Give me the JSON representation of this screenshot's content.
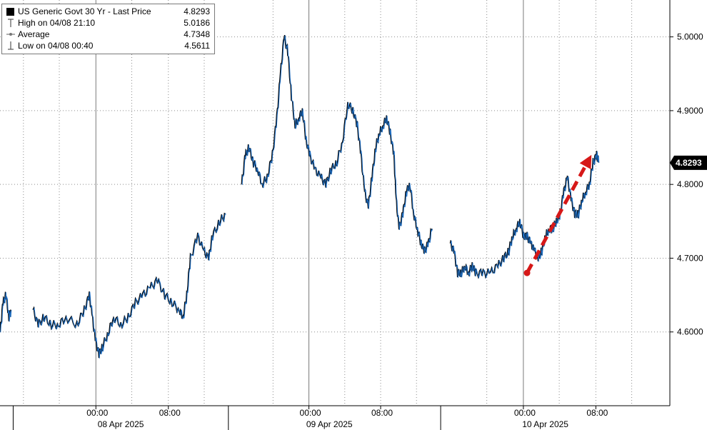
{
  "legend": {
    "series_name": "US Generic Govt 30 Yr - Last Price",
    "last_value": "4.8293",
    "high_label": "High on 04/08 21:10",
    "high_value": "5.0186",
    "average_label": "Average",
    "average_value": "4.7348",
    "low_label": "Low on 04/08 00:40",
    "low_value": "4.5611"
  },
  "colors": {
    "line_up": "#1f6fc4",
    "line_dark": "#000000",
    "arrow": "#d61818",
    "last_box": "#000000"
  },
  "chart_data": {
    "type": "line",
    "series": [
      {
        "name": "US Generic Govt 30 Yr - Last Price",
        "segments": [
          [
            [
              0,
              4.6
            ],
            [
              0.4,
              4.64
            ],
            [
              0.8,
              4.65
            ],
            [
              1.2,
              4.62
            ],
            [
              1.5,
              4.63
            ]
          ],
          [
            [
              4.5,
              4.63
            ],
            [
              5.2,
              4.61
            ],
            [
              6.0,
              4.62
            ],
            [
              7.0,
              4.61
            ],
            [
              8.0,
              4.61
            ],
            [
              9.0,
              4.62
            ],
            [
              10.5,
              4.61
            ],
            [
              11.5,
              4.63
            ],
            [
              12.2,
              4.65
            ],
            [
              12.6,
              4.62
            ],
            [
              13.0,
              4.59
            ],
            [
              13.5,
              4.57
            ],
            [
              14.0,
              4.58
            ],
            [
              14.8,
              4.6
            ],
            [
              15.5,
              4.62
            ],
            [
              16.5,
              4.61
            ],
            [
              17.5,
              4.62
            ],
            [
              18.5,
              4.64
            ],
            [
              19.5,
              4.65
            ],
            [
              20.5,
              4.66
            ],
            [
              21.5,
              4.67
            ],
            [
              22.5,
              4.65
            ],
            [
              23.5,
              4.64
            ],
            [
              24.5,
              4.63
            ],
            [
              25.0,
              4.62
            ],
            [
              25.5,
              4.65
            ],
            [
              26.0,
              4.7
            ],
            [
              27.0,
              4.73
            ],
            [
              27.8,
              4.71
            ],
            [
              28.5,
              4.7
            ],
            [
              29.0,
              4.73
            ],
            [
              30.0,
              4.75
            ],
            [
              30.8,
              4.76
            ]
          ],
          [
            [
              33.0,
              4.8
            ],
            [
              33.5,
              4.84
            ],
            [
              34.0,
              4.85
            ],
            [
              34.6,
              4.83
            ],
            [
              35.2,
              4.82
            ],
            [
              35.8,
              4.8
            ],
            [
              36.5,
              4.81
            ],
            [
              37.2,
              4.84
            ],
            [
              37.8,
              4.89
            ],
            [
              38.3,
              4.95
            ],
            [
              38.8,
              5.0
            ],
            [
              39.3,
              4.98
            ],
            [
              39.8,
              4.92
            ],
            [
              40.3,
              4.88
            ],
            [
              40.8,
              4.89
            ],
            [
              41.3,
              4.9
            ],
            [
              41.8,
              4.86
            ],
            [
              42.3,
              4.84
            ],
            [
              43.0,
              4.82
            ],
            [
              43.8,
              4.81
            ],
            [
              44.5,
              4.8
            ],
            [
              45.2,
              4.82
            ],
            [
              46.0,
              4.83
            ],
            [
              46.8,
              4.86
            ],
            [
              47.5,
              4.91
            ],
            [
              48.2,
              4.9
            ],
            [
              48.8,
              4.88
            ],
            [
              49.3,
              4.84
            ],
            [
              49.8,
              4.79
            ],
            [
              50.3,
              4.77
            ],
            [
              50.8,
              4.81
            ],
            [
              51.3,
              4.85
            ],
            [
              51.8,
              4.87
            ],
            [
              52.3,
              4.88
            ],
            [
              52.8,
              4.89
            ],
            [
              53.3,
              4.87
            ],
            [
              53.8,
              4.84
            ],
            [
              54.1,
              4.78
            ],
            [
              54.5,
              4.74
            ],
            [
              55.0,
              4.76
            ],
            [
              55.5,
              4.79
            ],
            [
              56.0,
              4.8
            ],
            [
              56.5,
              4.76
            ],
            [
              57.0,
              4.74
            ],
            [
              57.5,
              4.72
            ],
            [
              58.0,
              4.71
            ],
            [
              58.5,
              4.72
            ],
            [
              59.0,
              4.74
            ]
          ],
          [
            [
              61.5,
              4.72
            ],
            [
              62.0,
              4.71
            ],
            [
              62.5,
              4.68
            ],
            [
              63.0,
              4.68
            ],
            [
              63.5,
              4.69
            ],
            [
              64.0,
              4.68
            ],
            [
              64.5,
              4.69
            ],
            [
              65.0,
              4.68
            ],
            [
              66.0,
              4.68
            ],
            [
              67.0,
              4.68
            ],
            [
              68.0,
              4.69
            ],
            [
              68.8,
              4.7
            ],
            [
              69.5,
              4.71
            ],
            [
              70.0,
              4.73
            ],
            [
              70.5,
              4.74
            ],
            [
              71.0,
              4.75
            ],
            [
              71.5,
              4.73
            ],
            [
              72.0,
              4.73
            ],
            [
              72.5,
              4.72
            ],
            [
              73.0,
              4.71
            ],
            [
              73.5,
              4.7
            ],
            [
              74.0,
              4.71
            ],
            [
              74.5,
              4.73
            ],
            [
              75.0,
              4.74
            ],
            [
              75.5,
              4.74
            ],
            [
              76.0,
              4.75
            ],
            [
              76.5,
              4.76
            ],
            [
              77.0,
              4.79
            ],
            [
              77.5,
              4.81
            ],
            [
              78.0,
              4.78
            ],
            [
              78.5,
              4.76
            ],
            [
              79.0,
              4.76
            ],
            [
              79.5,
              4.78
            ],
            [
              80.0,
              4.79
            ],
            [
              80.5,
              4.8
            ],
            [
              81.0,
              4.83
            ],
            [
              81.5,
              4.84
            ],
            [
              81.8,
              4.83
            ]
          ]
        ]
      }
    ],
    "annotation_arrow": {
      "from": [
        72.0,
        4.68
      ],
      "to": [
        80.8,
        4.84
      ]
    },
    "last_price_label": "4.8293",
    "ylim": [
      4.5,
      5.05
    ],
    "y_ticks": [
      "4.6000",
      "4.7000",
      "4.8000",
      "4.9000",
      "5.0000"
    ],
    "x_ticks": [
      "00:00",
      "08:00",
      "00:00",
      "08:00",
      "00:00",
      "08:00"
    ],
    "x_day_labels": [
      "08 Apr 2025",
      "09 Apr 2025",
      "10 Apr 2025"
    ],
    "grid": true,
    "legend_position": "top-left"
  }
}
